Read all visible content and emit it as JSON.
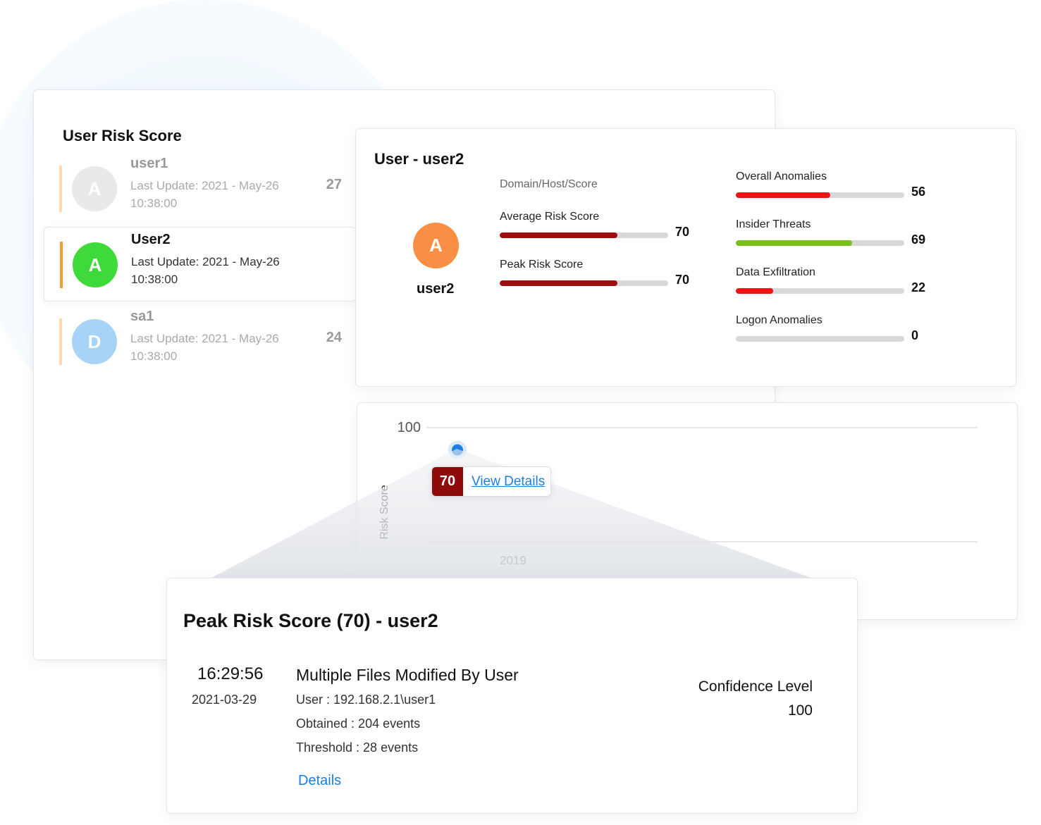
{
  "list": {
    "title": "User Risk Score",
    "items": [
      {
        "name": "user1",
        "initial": "A",
        "last_update": "Last Update: 2021 - May-26 10:38:00",
        "score": "27",
        "avatar_color": "#e9e9e9"
      },
      {
        "name": "User2",
        "initial": "A",
        "last_update": "Last Update: 2021 - May-26 10:38:00",
        "score": "",
        "avatar_color": "#3ed93a"
      },
      {
        "name": "sa1",
        "initial": "D",
        "last_update": "Last Update: 2021 - May-26 10:38:00",
        "score": "24",
        "avatar_color": "#a7d3f6"
      }
    ]
  },
  "detail": {
    "title": "User - user2",
    "initial": "A",
    "avatar_color": "#f98f45",
    "username": "user2",
    "subtitle": "Domain/Host/Score",
    "left_metrics": [
      {
        "label": "Average Risk Score",
        "value": 70,
        "color": "#a00f0f"
      },
      {
        "label": "Peak Risk Score",
        "value": 70,
        "color": "#a00f0f"
      }
    ],
    "right_metrics": [
      {
        "label": "Overall Anomalies",
        "value": 56,
        "color": "#f01414"
      },
      {
        "label": "Insider Threats",
        "value": 69,
        "color": "#78c01e"
      },
      {
        "label": "Data Exfiltration",
        "value": 22,
        "color": "#f01414"
      },
      {
        "label": "Logon Anomalies",
        "value": 0,
        "color": "#f01414"
      }
    ]
  },
  "chart_data": {
    "type": "scatter",
    "ylabel": "Risk Score",
    "ytick": "100",
    "xtick": "2019",
    "ylim": [
      0,
      100
    ],
    "points": [
      {
        "x": "2019",
        "y": 70
      }
    ],
    "point_color": "#1d7ee0"
  },
  "tooltip": {
    "value": "70",
    "link": "View Details"
  },
  "popup": {
    "title": "Peak Risk Score (70) - user2",
    "time": "16:29:56",
    "date": "2021-03-29",
    "event": "Multiple Files Modified By User",
    "user": "User : 192.168.2.1\\user1",
    "obtained": "Obtained : 204 events",
    "threshold": "Threshold : 28 events",
    "details": "Details",
    "confidence_label": "Confidence Level",
    "confidence_value": "100"
  }
}
